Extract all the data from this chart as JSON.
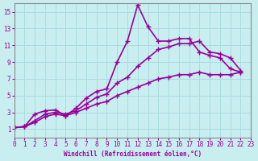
{
  "xlabel": "Windchill (Refroidissement éolien,°C)",
  "background_color": "#c8eef0",
  "line_color": "#990099",
  "grid_color": "#aadddd",
  "xlim": [
    0,
    23
  ],
  "ylim": [
    0,
    16
  ],
  "xticks": [
    0,
    1,
    2,
    3,
    4,
    5,
    6,
    7,
    8,
    9,
    10,
    11,
    12,
    13,
    14,
    15,
    16,
    17,
    18,
    19,
    20,
    21,
    22,
    23
  ],
  "yticks": [
    1,
    3,
    5,
    7,
    9,
    11,
    13,
    15
  ],
  "line1_x": [
    0,
    1,
    2,
    3,
    4,
    5,
    6,
    7,
    8,
    9,
    10,
    11,
    12,
    13,
    14,
    15,
    16,
    17,
    18,
    19,
    20,
    21,
    22
  ],
  "line1_y": [
    1.2,
    1.3,
    2.8,
    3.2,
    3.3,
    2.6,
    3.5,
    4.7,
    5.5,
    5.8,
    9.0,
    11.5,
    15.8,
    13.2,
    11.5,
    11.5,
    11.8,
    11.8,
    10.2,
    9.8,
    9.5,
    8.2,
    7.8
  ],
  "line2_x": [
    0,
    1,
    2,
    3,
    4,
    5,
    6,
    7,
    8,
    9,
    10,
    11,
    12,
    13,
    14,
    15,
    16,
    17,
    18,
    19,
    20,
    21,
    22
  ],
  "line2_y": [
    1.2,
    1.3,
    2.0,
    2.8,
    3.0,
    2.8,
    3.2,
    4.0,
    4.8,
    5.2,
    6.5,
    7.2,
    8.5,
    9.5,
    10.5,
    10.8,
    11.2,
    11.2,
    11.5,
    10.2,
    10.0,
    9.5,
    8.0
  ],
  "line3_x": [
    0,
    1,
    2,
    3,
    4,
    5,
    6,
    7,
    8,
    9,
    10,
    11,
    12,
    13,
    14,
    15,
    16,
    17,
    18,
    19,
    20,
    21,
    22
  ],
  "line3_y": [
    1.2,
    1.3,
    1.8,
    2.5,
    2.8,
    2.6,
    3.0,
    3.5,
    4.0,
    4.3,
    5.0,
    5.5,
    6.0,
    6.5,
    7.0,
    7.2,
    7.5,
    7.5,
    7.8,
    7.5,
    7.5,
    7.5,
    7.8
  ],
  "marker": "+",
  "markersize": 4,
  "linewidth": 1.2
}
